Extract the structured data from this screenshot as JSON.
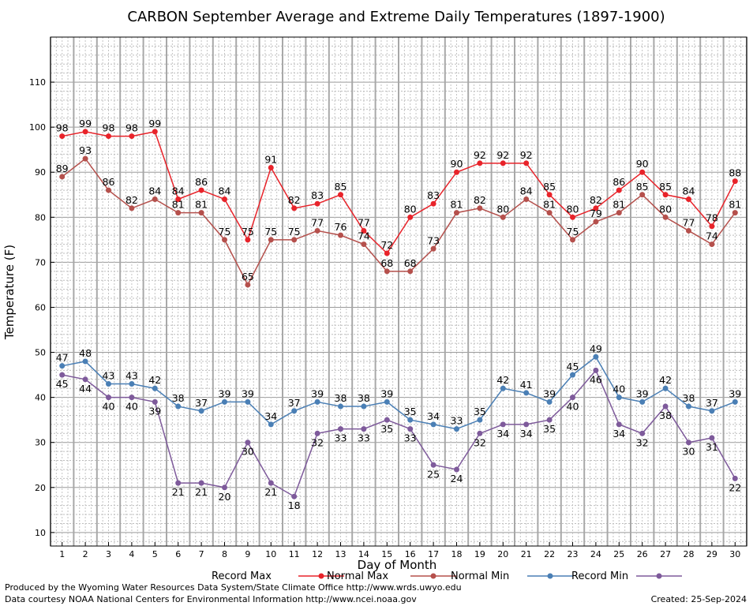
{
  "chart_data": {
    "type": "line",
    "title": "CARBON September Average and Extreme Daily Temperatures (1897-1900)",
    "xlabel": "Day of Month",
    "ylabel": "Temperature (F)",
    "x": [
      1,
      2,
      3,
      4,
      5,
      6,
      7,
      8,
      9,
      10,
      11,
      12,
      13,
      14,
      15,
      16,
      17,
      18,
      19,
      20,
      21,
      22,
      23,
      24,
      25,
      26,
      27,
      28,
      29,
      30
    ],
    "xlim": [
      0.5,
      30.5
    ],
    "ylim": [
      7,
      120
    ],
    "yticks": [
      10,
      20,
      30,
      40,
      50,
      60,
      70,
      80,
      90,
      100,
      110
    ],
    "grid": true,
    "legend_position": "bottom",
    "series": [
      {
        "name": "Record Max",
        "color": "#e8232a",
        "values": [
          98,
          99,
          98,
          98,
          99,
          84,
          86,
          84,
          75,
          91,
          82,
          83,
          85,
          77,
          72,
          80,
          83,
          90,
          92,
          92,
          92,
          85,
          80,
          82,
          86,
          90,
          85,
          84,
          78,
          88
        ]
      },
      {
        "name": "Normal Max",
        "color": "#b5504c",
        "values": [
          89,
          93,
          86,
          82,
          84,
          81,
          81,
          75,
          65,
          75,
          75,
          77,
          76,
          74,
          68,
          68,
          73,
          81,
          82,
          80,
          84,
          81,
          75,
          79,
          81,
          85,
          80,
          77,
          74,
          81
        ]
      },
      {
        "name": "Normal Min",
        "color": "#4a7fb5",
        "values": [
          47,
          48,
          43,
          43,
          42,
          38,
          37,
          39,
          39,
          34,
          37,
          39,
          38,
          38,
          39,
          35,
          34,
          33,
          35,
          42,
          41,
          39,
          45,
          49,
          40,
          39,
          42,
          38,
          37,
          39
        ]
      },
      {
        "name": "Record Min",
        "color": "#7e5a9b",
        "values": [
          45,
          44,
          40,
          40,
          39,
          21,
          21,
          20,
          30,
          21,
          18,
          32,
          33,
          33,
          35,
          33,
          25,
          24,
          32,
          34,
          34,
          35,
          40,
          46,
          34,
          32,
          38,
          30,
          31,
          22
        ]
      }
    ]
  },
  "footer": {
    "line1": "Produced by the Wyoming Water Resources Data System/State Climate Office http://www.wrds.uwyo.edu",
    "line2": "Data courtesy NOAA National Centers for Environmental Information http://www.ncei.noaa.gov",
    "created": "Created:  25-Sep-2024"
  }
}
